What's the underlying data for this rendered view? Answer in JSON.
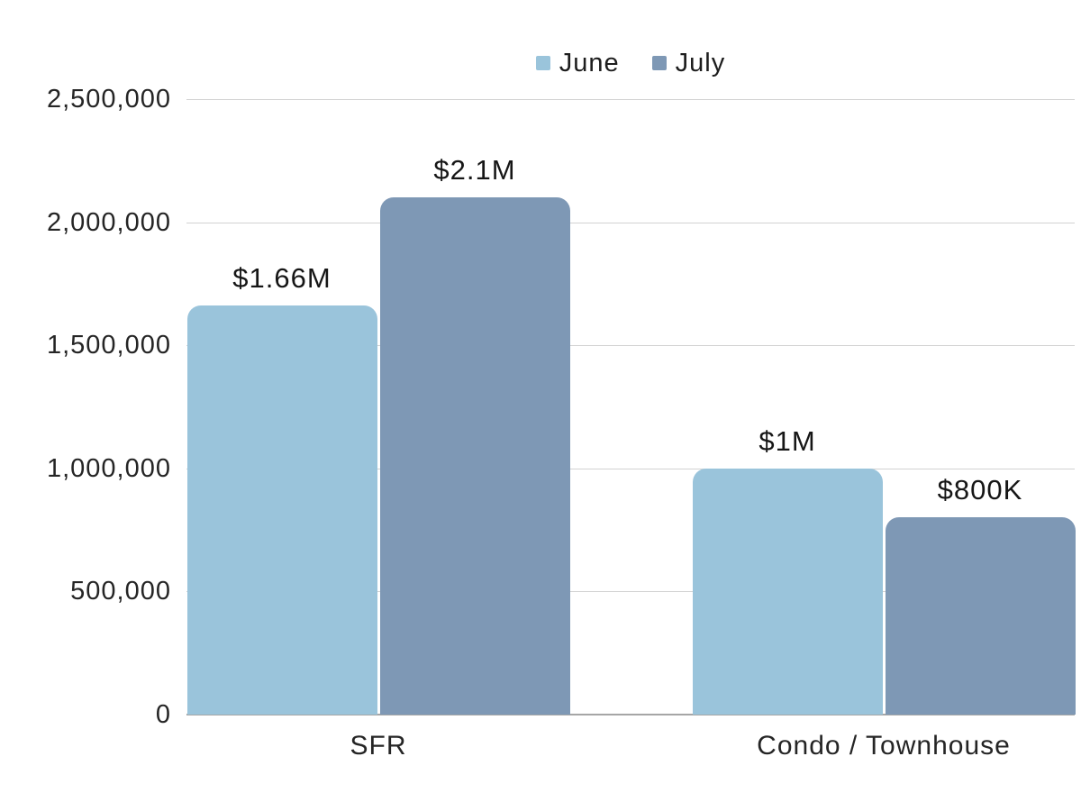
{
  "chart_data": {
    "type": "bar",
    "title": "",
    "categories": [
      "SFR",
      "Condo / Townhouse"
    ],
    "series": [
      {
        "name": "June",
        "color": "#9AC4DB",
        "values": [
          1660000,
          1000000
        ],
        "labels": [
          "$1.66M",
          "$1M"
        ]
      },
      {
        "name": "July",
        "color": "#7E98B5",
        "values": [
          2100000,
          800000
        ],
        "labels": [
          "$2.1M",
          "$800K"
        ]
      }
    ],
    "ylim": [
      0,
      2500000
    ],
    "yticks": [
      {
        "value": 0,
        "label": "0"
      },
      {
        "value": 500000,
        "label": "500,000"
      },
      {
        "value": 1000000,
        "label": "1,000,000"
      },
      {
        "value": 1500000,
        "label": "1,500,000"
      },
      {
        "value": 2000000,
        "label": "2,000,000"
      },
      {
        "value": 2500000,
        "label": "2,500,000"
      }
    ],
    "grid": true,
    "legend_position": "top"
  },
  "colors": {
    "background": "#ffffff",
    "gridline": "#d2d2d2",
    "axis_line": "#a6a6a6",
    "text": "#1d1d1d"
  }
}
